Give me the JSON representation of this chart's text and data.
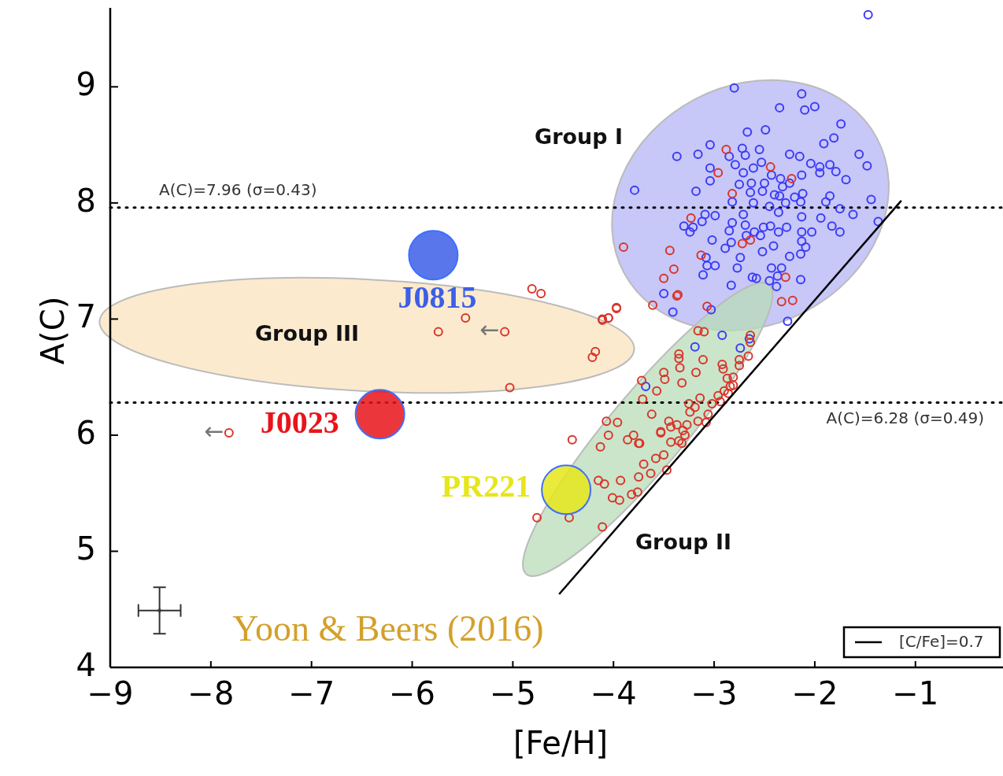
{
  "chart_data": {
    "type": "scatter",
    "xlabel": "[Fe/H]",
    "ylabel": "A(C)",
    "xlim": [
      -9,
      -0.13
    ],
    "ylim": [
      4,
      9.68
    ],
    "xticks": [
      {
        "value": -9,
        "label": "−9"
      },
      {
        "value": -8,
        "label": "−8"
      },
      {
        "value": -7,
        "label": "−7"
      },
      {
        "value": -6,
        "label": "−6"
      },
      {
        "value": -5,
        "label": "−5"
      },
      {
        "value": -4,
        "label": "−4"
      },
      {
        "value": -3,
        "label": "−3"
      },
      {
        "value": -2,
        "label": "−2"
      },
      {
        "value": -1,
        "label": "−1"
      }
    ],
    "yticks": [
      4,
      5,
      6,
      7,
      8,
      9
    ],
    "grid": false,
    "legend": "bottom right",
    "ref_lines": [
      {
        "axis": "y",
        "value": 7.96,
        "label": "A(C)=7.96 (σ=0.43)",
        "line_style": "dotted",
        "color": "#000000"
      },
      {
        "axis": "y",
        "value": 6.28,
        "label": "A(C)=6.28 (σ=0.49)",
        "line_style": "dotted",
        "color": "#000000"
      }
    ],
    "annotations": [
      "Group I",
      "Group II",
      "Group III",
      "←",
      "←",
      "Yoon & Beers (2016)"
    ],
    "series": [
      {
        "marker": "circle",
        "color": "#3b3bf5",
        "x": [
          -1.47,
          -2.8,
          -2.13,
          -2.35,
          -2.1,
          -2.0,
          -1.74,
          -2.67,
          -2.49,
          -1.81,
          -1.91,
          -1.56,
          -1.48,
          -1.69,
          -1.44,
          -1.37,
          -3.37,
          -3.16,
          -3.04,
          -3.79,
          -3.18,
          -3.04,
          -3.04,
          -2.72,
          -2.69,
          -2.55,
          -2.85,
          -2.79,
          -2.53,
          -2.71,
          -2.61,
          -2.43,
          -2.25,
          -2.15,
          -2.04,
          -1.95,
          -1.85,
          -1.79,
          -1.95,
          -2.13,
          -2.34,
          -2.75,
          -2.63,
          -2.5,
          -2.25,
          -2.32,
          -2.64,
          -2.52,
          -2.4,
          -2.35,
          -2.2,
          -2.12,
          -2.14,
          -1.85,
          -1.89,
          -2.82,
          -2.61,
          -2.45,
          -2.29,
          -1.75,
          -1.62,
          -2.36,
          -3.09,
          -2.99,
          -3.3,
          -3.21,
          -3.24,
          -3.12,
          -2.71,
          -2.69,
          -2.82,
          -2.85,
          -2.6,
          -2.51,
          -2.44,
          -2.36,
          -2.28,
          -2.13,
          -2.13,
          -2.03,
          -1.94,
          -1.83,
          -1.75,
          -3.02,
          -2.83,
          -2.68,
          -2.54,
          -2.13,
          -2.89,
          -2.52,
          -2.41,
          -2.09,
          -2.14,
          -2.25,
          -3.08,
          -2.74,
          -3.07,
          -2.99,
          -2.77,
          -3.11,
          -2.43,
          -2.33,
          -2.37,
          -2.62,
          -2.58,
          -2.45,
          -2.14,
          -2.83,
          -2.38,
          -3.5,
          -3.41,
          -3.03,
          -2.92,
          -3.19,
          -2.74,
          -2.65,
          -2.27,
          -3.68
        ],
        "values": [
          9.62,
          8.99,
          8.94,
          8.82,
          8.8,
          8.83,
          8.68,
          8.61,
          8.63,
          8.56,
          8.51,
          8.42,
          8.32,
          8.2,
          8.03,
          7.84,
          8.4,
          8.42,
          8.5,
          8.11,
          8.1,
          8.19,
          8.3,
          8.47,
          8.41,
          8.46,
          8.4,
          8.33,
          8.35,
          8.26,
          8.3,
          8.24,
          8.42,
          8.4,
          8.34,
          8.31,
          8.33,
          8.27,
          8.26,
          8.24,
          8.21,
          8.16,
          8.17,
          8.17,
          8.17,
          8.14,
          8.09,
          8.1,
          8.07,
          8.06,
          8.05,
          8.08,
          8.01,
          8.06,
          8.01,
          8.01,
          8.0,
          7.97,
          8.0,
          7.95,
          7.9,
          7.92,
          7.9,
          7.89,
          7.8,
          7.79,
          7.75,
          7.84,
          7.9,
          7.81,
          7.83,
          7.76,
          7.75,
          7.79,
          7.8,
          7.75,
          7.79,
          7.88,
          7.75,
          7.75,
          7.87,
          7.8,
          7.75,
          7.68,
          7.66,
          7.72,
          7.72,
          7.67,
          7.61,
          7.58,
          7.63,
          7.62,
          7.56,
          7.54,
          7.53,
          7.53,
          7.46,
          7.46,
          7.44,
          7.38,
          7.44,
          7.44,
          7.37,
          7.36,
          7.35,
          7.33,
          7.34,
          7.29,
          7.28,
          7.22,
          7.06,
          7.08,
          6.86,
          6.76,
          6.75,
          6.83,
          6.98,
          6.42
        ]
      },
      {
        "marker": "circle",
        "color": "#d9352a",
        "x": [
          -2.88,
          -2.44,
          -2.23,
          -2.96,
          -2.82,
          -3.23,
          -3.9,
          -3.44,
          -3.13,
          -2.72,
          -2.64,
          -3.4,
          -3.5,
          -2.29,
          -3.36,
          -3.37,
          -3.61,
          -3.07,
          -2.33,
          -2.22,
          -3.97,
          -4.05,
          -4.11,
          -3.16,
          -3.1,
          -2.64,
          -2.64,
          -3.35,
          -3.35,
          -3.11,
          -2.66,
          -2.75,
          -2.92,
          -3.34,
          -2.75,
          -2.91,
          -3.18,
          -3.5,
          -3.49,
          -3.72,
          -3.32,
          -2.87,
          -2.81,
          -2.84,
          -3.57,
          -2.9,
          -2.96,
          -3.14,
          -3.71,
          -3.25,
          -3.02,
          -3.19,
          -3.24,
          -3.62,
          -3.06,
          -4.07,
          -3.96,
          -3.45,
          -3.37,
          -3.53,
          -3.31,
          -4.05,
          -3.8,
          -3.86,
          -3.75,
          -3.43,
          -3.32,
          -3.08,
          -4.41,
          -4.13,
          -3.74,
          -3.58,
          -3.5,
          -3.7,
          -3.47,
          -3.63,
          -3.75,
          -3.93,
          -4.15,
          -4.09,
          -4.01,
          -3.94,
          -3.82,
          -3.76,
          -4.76,
          -4.44,
          -4.11,
          -3.53,
          -3.43,
          -3.27,
          -3.16,
          -2.94,
          -2.86,
          -2.81,
          -3.29,
          -3.35,
          -5.74,
          -5.47,
          -5.08,
          -4.81,
          -4.72,
          -3.97,
          -4.11,
          -4.05,
          -4.18,
          -4.21,
          -5.03,
          -7.82
        ],
        "values": [
          8.46,
          8.31,
          8.21,
          8.26,
          8.08,
          7.87,
          7.62,
          7.59,
          7.55,
          7.65,
          7.68,
          7.43,
          7.35,
          7.36,
          7.21,
          7.2,
          7.12,
          7.11,
          7.15,
          7.16,
          7.09,
          7.01,
          7.0,
          6.9,
          6.89,
          6.86,
          6.8,
          6.7,
          6.66,
          6.65,
          6.68,
          6.65,
          6.61,
          6.58,
          6.6,
          6.57,
          6.54,
          6.54,
          6.48,
          6.47,
          6.45,
          6.49,
          6.5,
          6.42,
          6.38,
          6.38,
          6.34,
          6.32,
          6.31,
          6.27,
          6.27,
          6.24,
          6.2,
          6.18,
          6.18,
          6.12,
          6.11,
          6.12,
          6.09,
          6.02,
          6.04,
          6.0,
          6.0,
          5.96,
          5.93,
          5.94,
          5.93,
          6.11,
          5.96,
          5.9,
          5.93,
          5.8,
          5.83,
          5.75,
          5.7,
          5.67,
          5.64,
          5.61,
          5.61,
          5.58,
          5.46,
          5.44,
          5.49,
          5.51,
          5.29,
          5.29,
          5.21,
          6.03,
          6.07,
          6.09,
          6.12,
          6.29,
          6.36,
          6.43,
          6.0,
          5.95,
          6.89,
          7.01,
          6.89,
          7.26,
          7.22,
          7.1,
          6.99,
          7.01,
          6.72,
          6.67,
          6.41,
          6.02
        ]
      },
      {
        "type": "line",
        "name": "[C/Fe]=0.7",
        "color": "#000000",
        "x": [
          -4.54,
          -1.14
        ],
        "values": [
          4.63,
          8.02
        ]
      },
      {
        "color": "#333333",
        "marker": "cross",
        "x": [
          -8.51
        ],
        "values": [
          4.49
        ],
        "errors": [
          0.2
        ],
        "xerrors": [
          0.21
        ]
      },
      {
        "marker": "circle",
        "name": "J0815",
        "color": "#3c5fe6",
        "x": [
          -5.79
        ],
        "values": [
          7.55
        ]
      },
      {
        "marker": "circle",
        "name": "J0023",
        "color": "#e8141a",
        "x": [
          -6.32
        ],
        "values": [
          6.18
        ]
      },
      {
        "marker": "circle",
        "name": "PR221",
        "color": "#e6e61a",
        "x": [
          -4.47
        ],
        "values": [
          5.53
        ]
      }
    ]
  }
}
